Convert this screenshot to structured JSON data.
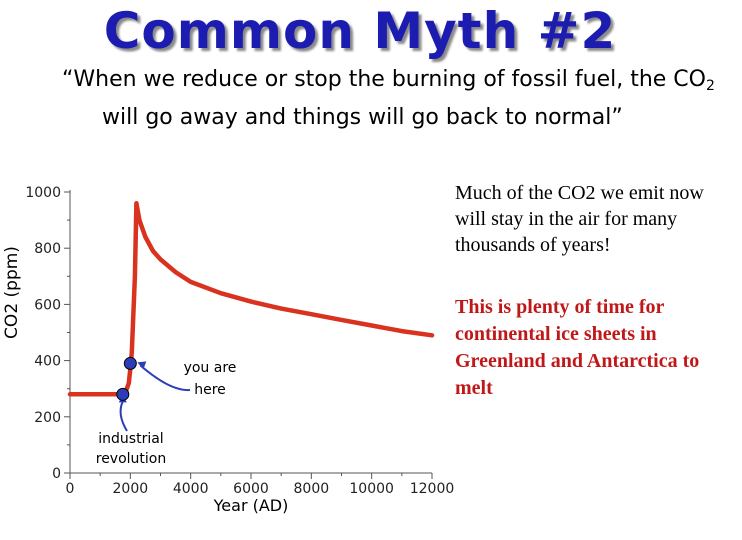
{
  "slide": {
    "title": "Common Myth #2",
    "quote_part1": "“When we reduce or stop the burning of fossil fuel, the CO",
    "quote_sub": "2",
    "quote_part2": " will go away and things will go back to normal”",
    "note_black": "Much of the CO2 we emit now will stay in the air for many thousands of years!",
    "note_red": "This is plenty of time for continental ice sheets in Greenland and Antarctica to melt"
  },
  "colors": {
    "title": "#1c1cb0",
    "curve": "#d9321f",
    "marker": "#2b3eb8",
    "note_red": "#c01818"
  },
  "chart_data": {
    "type": "line",
    "xlabel": "Year (AD)",
    "ylabel": "CO2 (ppm)",
    "xlim": [
      0,
      12000
    ],
    "ylim": [
      0,
      1000
    ],
    "xticks": [
      0,
      2000,
      4000,
      6000,
      8000,
      10000,
      12000
    ],
    "yticks": [
      0,
      200,
      400,
      600,
      800,
      1000
    ],
    "grid": false,
    "series": [
      {
        "x": [
          0,
          1700,
          1750,
          1850,
          1950,
          2000,
          2050,
          2150,
          2200,
          2300,
          2500,
          2750,
          3000,
          3500,
          4000,
          5000,
          6000,
          7000,
          8000,
          9000,
          10000,
          11000,
          12000
        ],
        "y": [
          280,
          280,
          280,
          290,
          320,
          370,
          430,
          700,
          960,
          900,
          840,
          790,
          760,
          715,
          680,
          640,
          610,
          585,
          565,
          545,
          525,
          505,
          490
        ]
      }
    ],
    "annotations": [
      {
        "label": "industrial revolution",
        "x": 1750,
        "y": 280
      },
      {
        "label": "you are here",
        "x": 2000,
        "y": 390
      }
    ]
  }
}
